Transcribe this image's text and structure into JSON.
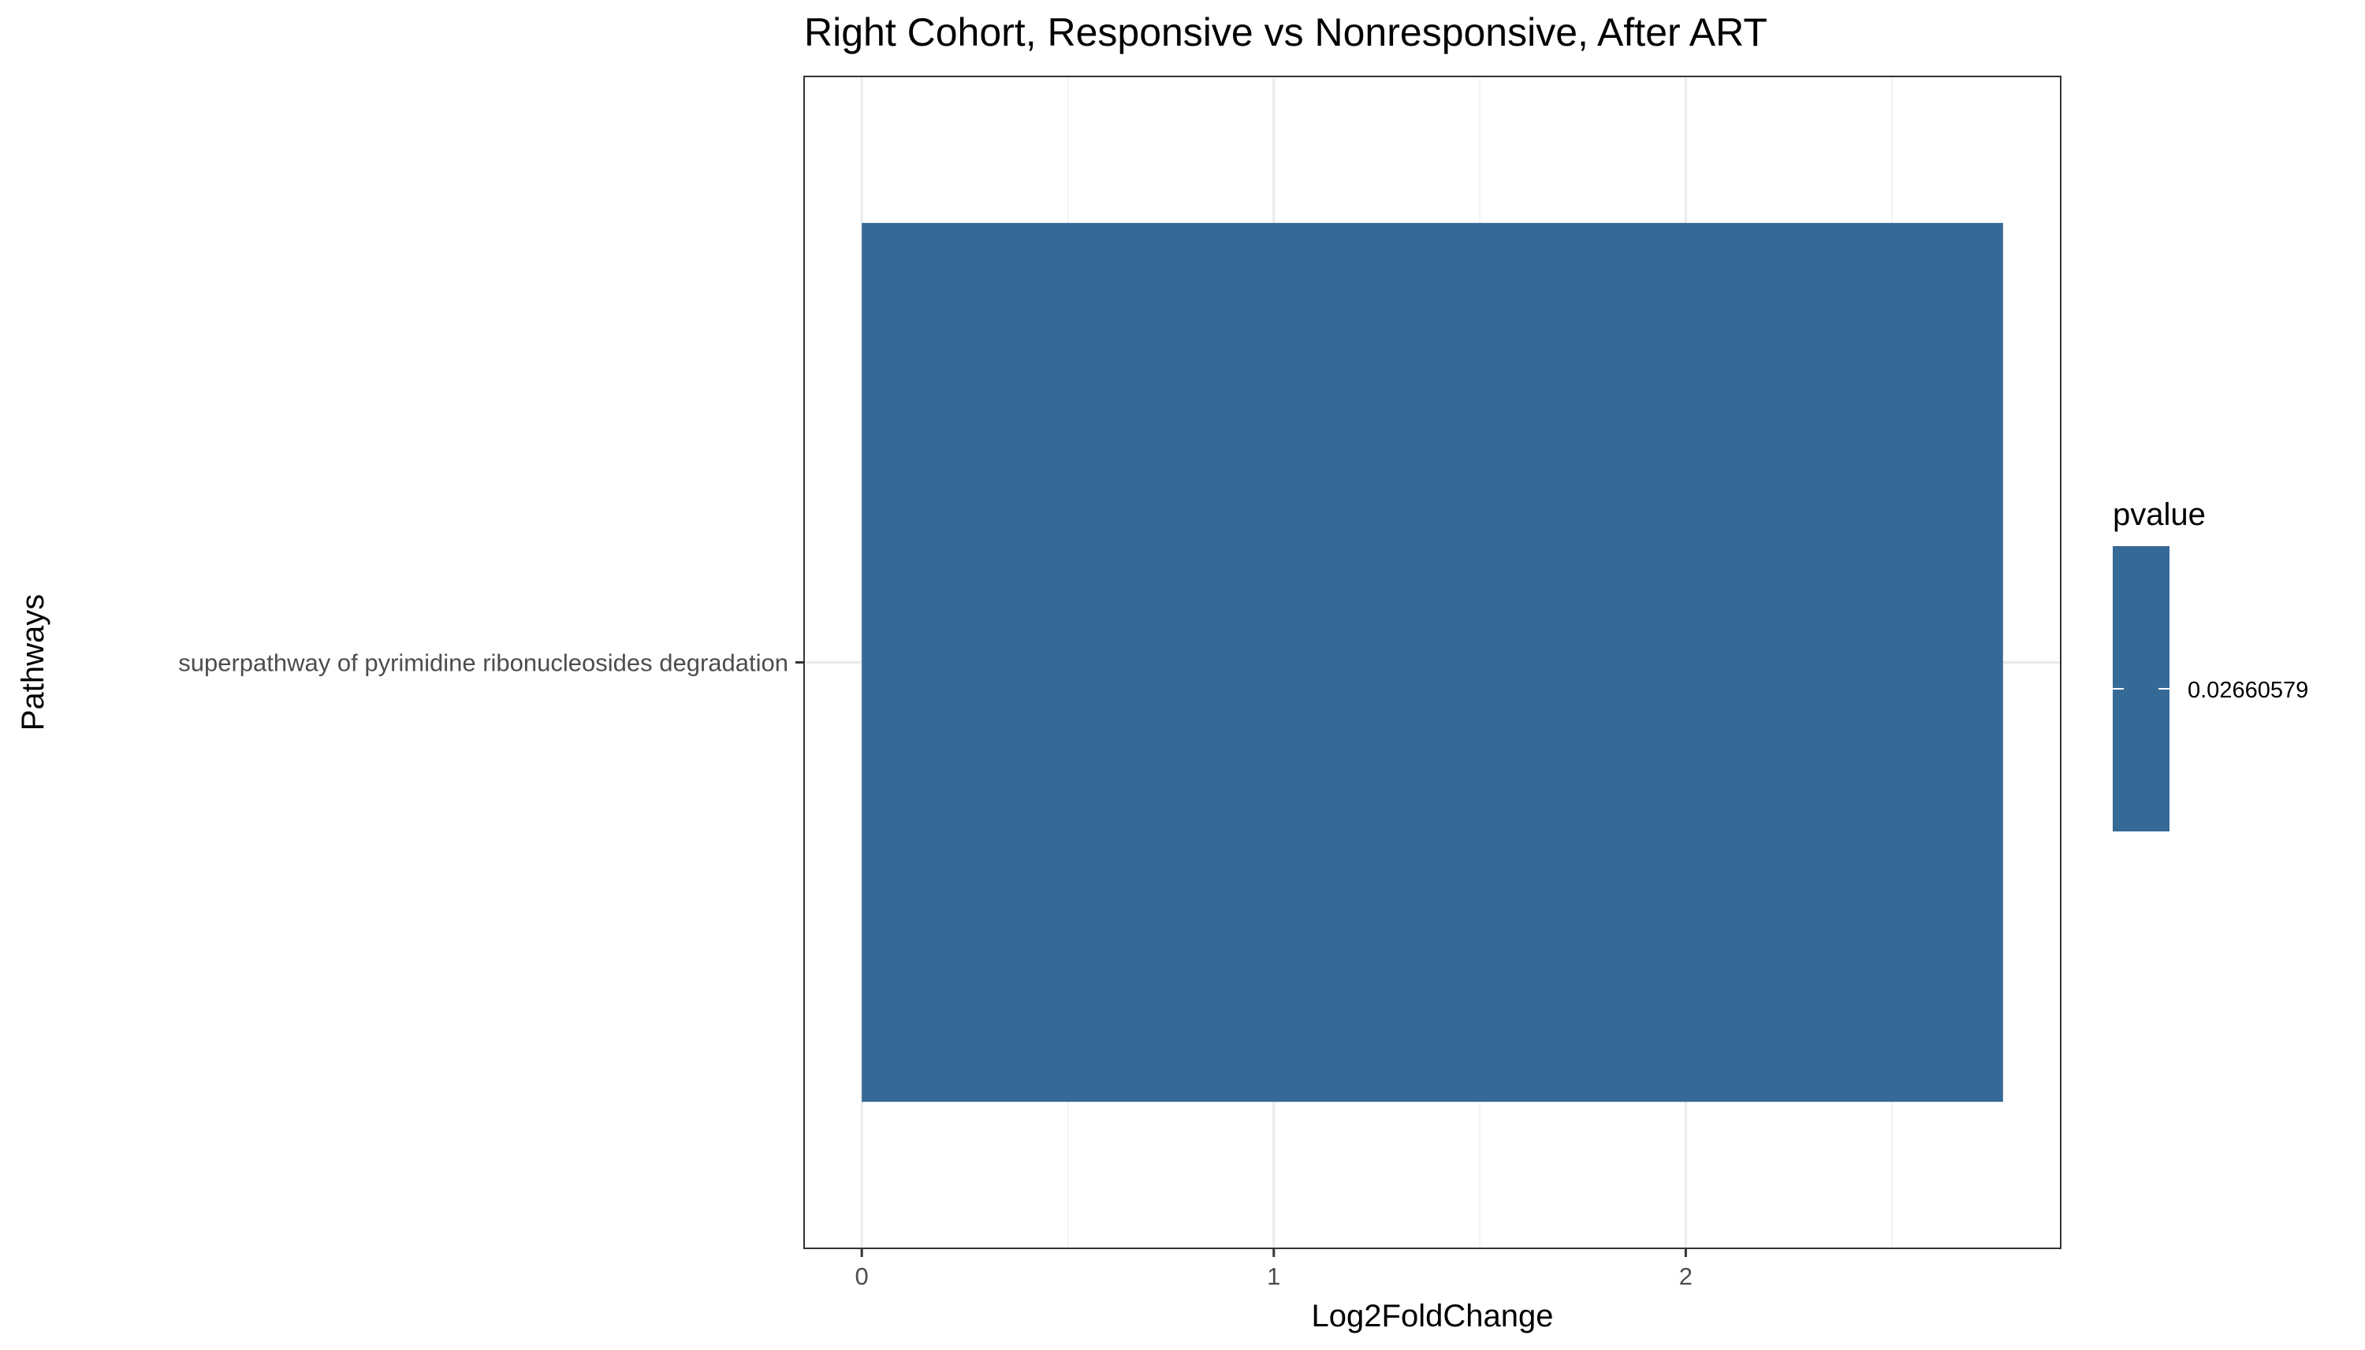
{
  "chart_data": {
    "type": "bar",
    "orientation": "horizontal",
    "title": "Right Cohort, Responsive vs Nonresponsive, After ART",
    "xlabel": "Log2FoldChange",
    "ylabel": "Pathways",
    "categories": [
      "superpathway of pyrimidine ribonucleosides degradation"
    ],
    "values": [
      2.77
    ],
    "xlim": [
      -0.14,
      2.91
    ],
    "xticks": [
      0,
      1,
      2
    ],
    "grid": true,
    "legend": {
      "title": "pvalue",
      "placement": "right",
      "labels": [
        "0.02660579"
      ]
    },
    "colors": {
      "bar": "#366a96",
      "panel_border": "#333333",
      "grid_major": "#ebebeb",
      "grid_minor": "#f3f3f3",
      "axis_text": "#4d4d4d"
    }
  }
}
